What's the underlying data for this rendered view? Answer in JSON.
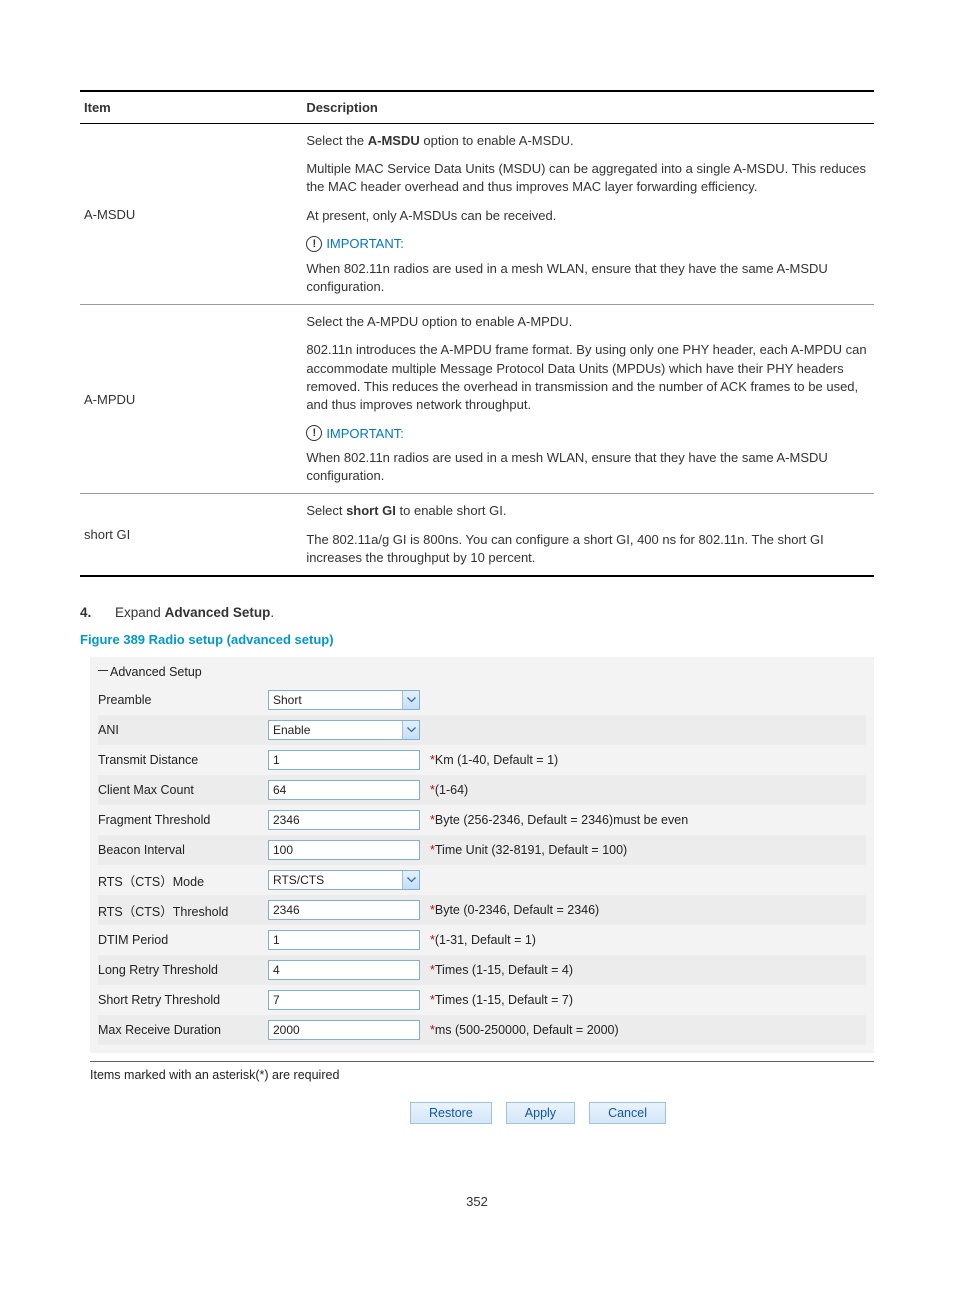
{
  "table": {
    "head_item": "Item",
    "head_desc": "Description",
    "rows": [
      {
        "item": "A-MSDU",
        "desc": {
          "p1a": "Select the ",
          "p1b_bold": "A-MSDU",
          "p1c": " option to enable A-MSDU.",
          "p2": "Multiple MAC Service Data Units (MSDU) can be aggregated into a single A-MSDU. This reduces the MAC header overhead and thus improves MAC layer forwarding efficiency.",
          "p3": "At present, only A-MSDUs can be received.",
          "important_label": "IMPORTANT:",
          "p4": "When 802.11n radios are used in a mesh WLAN, ensure that they have the same A-MSDU configuration."
        }
      },
      {
        "item": "A-MPDU",
        "desc": {
          "p1": "Select the A-MPDU option to enable A-MPDU.",
          "p2": "802.11n introduces the A-MPDU frame format. By using only one PHY header, each A-MPDU can accommodate multiple Message Protocol Data Units (MPDUs) which have their PHY headers removed. This reduces the overhead in transmission and the number of ACK frames to be used, and thus improves network throughput.",
          "important_label": "IMPORTANT:",
          "p3": "When 802.11n radios are used in a mesh WLAN, ensure that they have the same A-MSDU configuration."
        }
      },
      {
        "item": "short GI",
        "desc": {
          "p1a": "Select ",
          "p1b_bold": "short GI",
          "p1c": " to enable short GI.",
          "p2": "The 802.11a/g GI is 800ns. You can configure a short GI, 400 ns for 802.11n. The short GI increases the throughput by 10 percent."
        }
      }
    ]
  },
  "step": {
    "num": "4.",
    "pre": "Expand ",
    "bold": "Advanced Setup",
    "post": "."
  },
  "figure_caption": "Figure 389 Radio setup (advanced setup)",
  "form": {
    "section": "Advanced Setup",
    "rows": [
      {
        "label": "Preamble",
        "type": "select",
        "value": "Short",
        "hint": ""
      },
      {
        "label": "ANI",
        "type": "select",
        "value": "Enable",
        "hint": ""
      },
      {
        "label": "Transmit Distance",
        "type": "text",
        "value": "1",
        "hint": "Km (1-40, Default = 1)"
      },
      {
        "label": "Client Max Count",
        "type": "text",
        "value": "64",
        "hint": "(1-64)"
      },
      {
        "label": "Fragment Threshold",
        "type": "text",
        "value": "2346",
        "hint": "Byte (256-2346, Default = 2346)must be even"
      },
      {
        "label": "Beacon Interval",
        "type": "text",
        "value": "100",
        "hint": "Time Unit (32-8191, Default = 100)"
      },
      {
        "label": "RTS（CTS）Mode",
        "type": "select",
        "value": "RTS/CTS",
        "hint": ""
      },
      {
        "label": "RTS（CTS）Threshold",
        "type": "text",
        "value": "2346",
        "hint": "Byte (0-2346, Default = 2346)"
      },
      {
        "label": "DTIM Period",
        "type": "text",
        "value": "1",
        "hint": "(1-31, Default = 1)"
      },
      {
        "label": "Long Retry Threshold",
        "type": "text",
        "value": "4",
        "hint": "Times (1-15, Default = 4)"
      },
      {
        "label": "Short Retry Threshold",
        "type": "text",
        "value": "7",
        "hint": "Times (1-15, Default = 7)"
      },
      {
        "label": "Max Receive Duration",
        "type": "text",
        "value": "2000",
        "hint": "ms (500-250000, Default = 2000)"
      }
    ]
  },
  "footnote": "Items marked with an asterisk(*) are required",
  "buttons": {
    "restore": "Restore",
    "apply": "Apply",
    "cancel": "Cancel"
  },
  "page_num": "352",
  "colors": {
    "link_blue": "#0099cc",
    "important_blue": "#0077cc",
    "asterisk_red": "#c00",
    "btn_text": "#1156a4"
  }
}
